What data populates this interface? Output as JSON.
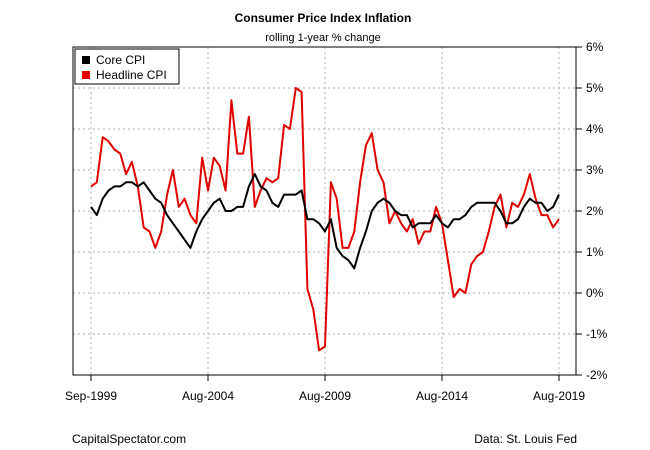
{
  "chart_data": {
    "type": "line",
    "title": "Consumer Price Index Inflation",
    "subtitle": "rolling 1-year % change",
    "xlabel": "",
    "ylabel": "",
    "x_tick_labels": [
      "Sep-1999",
      "Aug-2004",
      "Aug-2009",
      "Aug-2014",
      "Aug-2019"
    ],
    "y_ticks": [
      -2,
      -1,
      0,
      1,
      2,
      3,
      4,
      5,
      6
    ],
    "y_tick_labels": [
      "-2%",
      "-1%",
      "0%",
      "1%",
      "2%",
      "3%",
      "4%",
      "5%",
      "6%"
    ],
    "ylim": [
      -2,
      6
    ],
    "y_axis_side": "right",
    "grid": true,
    "legend_position": "top-left",
    "colors": {
      "core": "#000000",
      "headline": "#e00000"
    },
    "x": [
      "1999-09",
      "1999-12",
      "2000-03",
      "2000-06",
      "2000-09",
      "2000-12",
      "2001-03",
      "2001-06",
      "2001-09",
      "2001-12",
      "2002-03",
      "2002-06",
      "2002-09",
      "2002-12",
      "2003-03",
      "2003-06",
      "2003-09",
      "2003-12",
      "2004-03",
      "2004-06",
      "2004-09",
      "2004-12",
      "2005-03",
      "2005-06",
      "2005-09",
      "2005-12",
      "2006-03",
      "2006-06",
      "2006-09",
      "2006-12",
      "2007-03",
      "2007-06",
      "2007-09",
      "2007-12",
      "2008-03",
      "2008-06",
      "2008-09",
      "2008-12",
      "2009-03",
      "2009-06",
      "2009-09",
      "2009-12",
      "2010-03",
      "2010-06",
      "2010-09",
      "2010-12",
      "2011-03",
      "2011-06",
      "2011-09",
      "2011-12",
      "2012-03",
      "2012-06",
      "2012-09",
      "2012-12",
      "2013-03",
      "2013-06",
      "2013-09",
      "2013-12",
      "2014-03",
      "2014-06",
      "2014-09",
      "2014-12",
      "2015-03",
      "2015-06",
      "2015-09",
      "2015-12",
      "2016-03",
      "2016-06",
      "2016-09",
      "2016-12",
      "2017-03",
      "2017-06",
      "2017-09",
      "2017-12",
      "2018-03",
      "2018-06",
      "2018-09",
      "2018-12",
      "2019-03",
      "2019-06",
      "2019-08"
    ],
    "series": [
      {
        "name": "Core CPI",
        "values": [
          2.1,
          1.9,
          2.3,
          2.5,
          2.6,
          2.6,
          2.7,
          2.7,
          2.6,
          2.7,
          2.5,
          2.3,
          2.2,
          1.9,
          1.7,
          1.5,
          1.3,
          1.1,
          1.5,
          1.8,
          2.0,
          2.2,
          2.3,
          2.0,
          2.0,
          2.1,
          2.1,
          2.6,
          2.9,
          2.6,
          2.5,
          2.2,
          2.1,
          2.4,
          2.4,
          2.4,
          2.5,
          1.8,
          1.8,
          1.7,
          1.5,
          1.8,
          1.1,
          0.9,
          0.8,
          0.6,
          1.1,
          1.5,
          2.0,
          2.2,
          2.3,
          2.2,
          2.0,
          1.9,
          1.9,
          1.6,
          1.7,
          1.7,
          1.7,
          1.9,
          1.7,
          1.6,
          1.8,
          1.8,
          1.9,
          2.1,
          2.2,
          2.2,
          2.2,
          2.2,
          2.0,
          1.7,
          1.7,
          1.8,
          2.1,
          2.3,
          2.2,
          2.2,
          2.0,
          2.1,
          2.4
        ]
      },
      {
        "name": "Headline CPI",
        "values": [
          2.6,
          2.7,
          3.8,
          3.7,
          3.5,
          3.4,
          2.9,
          3.2,
          2.6,
          1.6,
          1.5,
          1.1,
          1.5,
          2.4,
          3.0,
          2.1,
          2.3,
          1.9,
          1.7,
          3.3,
          2.5,
          3.3,
          3.1,
          2.5,
          4.7,
          3.4,
          3.4,
          4.3,
          2.1,
          2.5,
          2.8,
          2.7,
          2.8,
          4.1,
          4.0,
          5.0,
          4.9,
          0.1,
          -0.4,
          -1.4,
          -1.3,
          2.7,
          2.3,
          1.1,
          1.1,
          1.5,
          2.7,
          3.6,
          3.9,
          3.0,
          2.7,
          1.7,
          2.0,
          1.7,
          1.5,
          1.8,
          1.2,
          1.5,
          1.5,
          2.1,
          1.7,
          0.8,
          -0.1,
          0.1,
          0.0,
          0.7,
          0.9,
          1.0,
          1.5,
          2.1,
          2.4,
          1.6,
          2.2,
          2.1,
          2.4,
          2.9,
          2.3,
          1.9,
          1.9,
          1.6,
          1.8
        ]
      }
    ]
  },
  "footer": {
    "source_left": "CapitalSpectator.com",
    "source_right": "Data: St. Louis Fed"
  }
}
